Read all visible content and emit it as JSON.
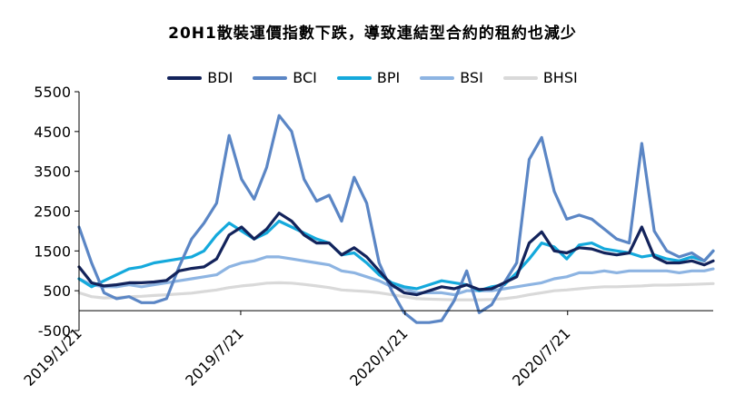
{
  "chart_data": {
    "type": "line",
    "title": "20H1散裝運價指數下跌，導致連結型合約的租約也減少",
    "xlabel": "",
    "ylabel": "",
    "ylim": [
      -500,
      5500
    ],
    "yticks": [
      "5500",
      "4500",
      "3500",
      "2500",
      "1500",
      "500",
      "-500"
    ],
    "ytick_values": [
      5500,
      4500,
      3500,
      2500,
      1500,
      500,
      -500
    ],
    "xlim": [
      "2019/1/21",
      "2020/12/31"
    ],
    "xticks": [
      "2019/1/21",
      "2019/7/21",
      "2020/1/21",
      "2020/7/21"
    ],
    "grid": false,
    "legend_position": "top-center",
    "x": [
      "2019/1/21",
      "2019/2/4",
      "2019/2/18",
      "2019/3/4",
      "2019/3/18",
      "2019/4/1",
      "2019/4/15",
      "2019/4/29",
      "2019/5/13",
      "2019/5/27",
      "2019/6/10",
      "2019/6/24",
      "2019/7/8",
      "2019/7/22",
      "2019/8/5",
      "2019/8/19",
      "2019/9/2",
      "2019/9/16",
      "2019/9/30",
      "2019/10/14",
      "2019/10/28",
      "2019/11/11",
      "2019/11/25",
      "2019/12/9",
      "2019/12/23",
      "2020/1/6",
      "2020/1/20",
      "2020/2/3",
      "2020/2/17",
      "2020/3/2",
      "2020/3/16",
      "2020/3/30",
      "2020/4/13",
      "2020/4/27",
      "2020/5/11",
      "2020/5/25",
      "2020/6/8",
      "2020/6/22",
      "2020/7/6",
      "2020/7/20",
      "2020/8/3",
      "2020/8/17",
      "2020/8/31",
      "2020/9/14",
      "2020/9/28",
      "2020/10/12",
      "2020/10/26",
      "2020/11/9",
      "2020/11/23",
      "2020/12/7",
      "2020/12/21",
      "2020/12/31"
    ],
    "series": [
      {
        "name": "BDI",
        "color": "#13235b",
        "width": 3.2,
        "values": [
          1100,
          700,
          620,
          650,
          700,
          700,
          720,
          760,
          1000,
          1060,
          1100,
          1300,
          1900,
          2100,
          1800,
          2050,
          2450,
          2250,
          1900,
          1700,
          1700,
          1400,
          1580,
          1350,
          1000,
          650,
          450,
          400,
          500,
          600,
          550,
          650,
          530,
          550,
          700,
          850,
          1700,
          1980,
          1500,
          1450,
          1580,
          1550,
          1450,
          1400,
          1450,
          2100,
          1350,
          1200,
          1200,
          1250,
          1150,
          1250
        ]
      },
      {
        "name": "BCI",
        "color": "#5b86c5",
        "width": 3.2,
        "values": [
          2100,
          1200,
          450,
          300,
          350,
          200,
          200,
          300,
          1100,
          1800,
          2200,
          2700,
          4400,
          3300,
          2800,
          3600,
          4900,
          4500,
          3300,
          2750,
          2900,
          2250,
          3350,
          2700,
          1200,
          500,
          -50,
          -300,
          -300,
          -250,
          250,
          1000,
          -50,
          150,
          700,
          1200,
          3800,
          4350,
          3000,
          2300,
          2400,
          2300,
          2050,
          1800,
          1700,
          4200,
          2000,
          1500,
          1350,
          1450,
          1250,
          1500
        ]
      },
      {
        "name": "BPI",
        "color": "#14a9dc",
        "width": 3.2,
        "values": [
          800,
          600,
          750,
          900,
          1050,
          1100,
          1200,
          1250,
          1300,
          1350,
          1500,
          1900,
          2200,
          2000,
          1800,
          1950,
          2250,
          2100,
          1950,
          1800,
          1700,
          1400,
          1450,
          1200,
          900,
          700,
          600,
          550,
          650,
          750,
          700,
          650,
          500,
          600,
          650,
          950,
          1300,
          1700,
          1600,
          1300,
          1650,
          1700,
          1550,
          1500,
          1450,
          1350,
          1400,
          1300,
          1250,
          1350,
          1250,
          1500
        ]
      },
      {
        "name": "BSI",
        "color": "#8db4e2",
        "width": 3.2,
        "values": [
          800,
          650,
          600,
          600,
          650,
          600,
          650,
          700,
          750,
          800,
          850,
          900,
          1100,
          1200,
          1250,
          1350,
          1350,
          1300,
          1250,
          1200,
          1150,
          1000,
          950,
          850,
          750,
          600,
          550,
          450,
          450,
          450,
          400,
          500,
          500,
          500,
          550,
          600,
          650,
          700,
          800,
          850,
          950,
          950,
          1000,
          950,
          1000,
          1000,
          1000,
          1000,
          950,
          1000,
          1000,
          1050
        ]
      },
      {
        "name": "BHSI",
        "color": "#d9d9d9",
        "width": 3.2,
        "values": [
          450,
          350,
          320,
          330,
          350,
          360,
          380,
          400,
          420,
          440,
          480,
          520,
          580,
          620,
          650,
          690,
          700,
          690,
          660,
          620,
          580,
          520,
          500,
          480,
          450,
          400,
          350,
          300,
          290,
          280,
          270,
          270,
          270,
          280,
          300,
          340,
          400,
          450,
          500,
          520,
          550,
          580,
          600,
          600,
          610,
          620,
          640,
          640,
          650,
          660,
          670,
          680
        ]
      }
    ]
  }
}
